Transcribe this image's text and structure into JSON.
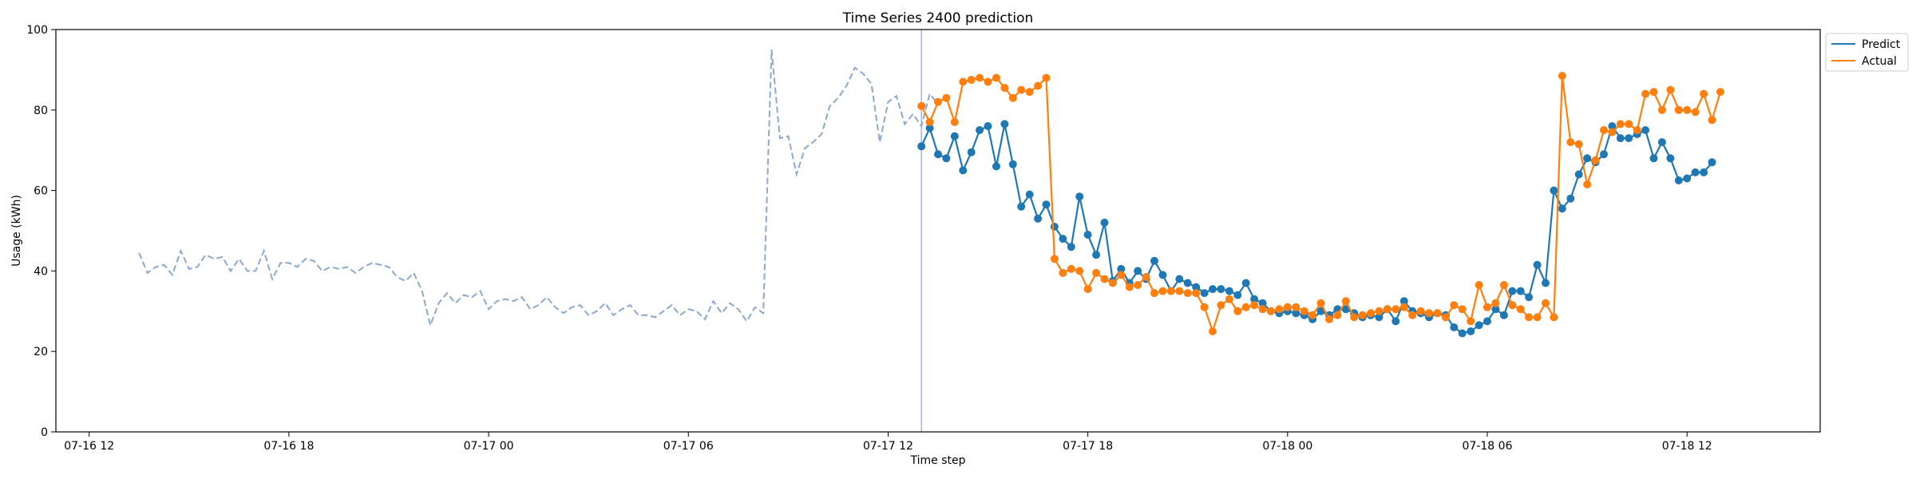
{
  "chart_data": {
    "type": "line",
    "title": "Time Series 2400 prediction",
    "xlabel": "Time step",
    "ylabel": "Usage (kWh)",
    "ylim": [
      0,
      100
    ],
    "yticks": [
      0,
      20,
      40,
      60,
      80,
      100
    ],
    "xlim": [
      "2024-07-16 11:00",
      "2024-07-18 16:00"
    ],
    "xticks": [
      {
        "t": "2024-07-16 12:00",
        "label": "07-16 12"
      },
      {
        "t": "2024-07-16 18:00",
        "label": "07-16 18"
      },
      {
        "t": "2024-07-17 00:00",
        "label": "07-17 00"
      },
      {
        "t": "2024-07-17 06:00",
        "label": "07-17 06"
      },
      {
        "t": "2024-07-17 12:00",
        "label": "07-17 12"
      },
      {
        "t": "2024-07-17 18:00",
        "label": "07-17 18"
      },
      {
        "t": "2024-07-18 00:00",
        "label": "07-18 00"
      },
      {
        "t": "2024-07-18 06:00",
        "label": "07-18 06"
      },
      {
        "t": "2024-07-18 12:00",
        "label": "07-18 12"
      }
    ],
    "forecast_start": "2024-07-17 13:00",
    "legend": {
      "position": "top-right"
    },
    "grid": false,
    "history": {
      "start": "2024-07-16 13:30",
      "step_minutes": 15,
      "color": "#8aa9cc",
      "values": [
        44.5,
        39.5,
        41,
        41.5,
        39,
        45,
        40.5,
        41,
        44,
        43,
        43.5,
        40,
        43,
        40,
        40,
        45,
        38,
        42,
        42,
        41,
        43,
        42.5,
        40,
        41,
        40.5,
        41,
        39.5,
        41,
        42,
        41.5,
        41,
        38.5,
        37.5,
        39.5,
        35,
        26.5,
        32,
        34.5,
        32,
        34,
        33.5,
        35,
        30.5,
        32.5,
        33,
        32.5,
        33.5,
        30.5,
        31.5,
        33.5,
        31,
        29.5,
        31,
        31.5,
        29,
        30,
        32,
        29,
        30.5,
        31.5,
        29,
        29,
        28.5,
        30,
        31.5,
        29,
        30.5,
        30,
        28,
        32.5,
        29.5,
        32,
        30.5,
        27.5,
        31,
        29.5,
        95,
        73,
        73.5,
        64,
        70.5,
        72,
        74,
        81,
        83,
        86,
        90.5,
        89,
        86.5,
        72,
        82,
        83.5,
        76.5,
        79,
        76,
        84,
        81.5
      ]
    },
    "series": [
      {
        "name": "Predict",
        "color": "#1f77b4",
        "start": "2024-07-17 13:00",
        "step_minutes": 15,
        "values": [
          71,
          75.5,
          69,
          68,
          73.5,
          65,
          69.5,
          75,
          76,
          66,
          76.5,
          66.5,
          56,
          59,
          53,
          56.5,
          51,
          48,
          46,
          58.5,
          49,
          44,
          52,
          37.5,
          40.5,
          37,
          40,
          38,
          42.5,
          39,
          35,
          38,
          37,
          36,
          34.5,
          35.5,
          35.5,
          35,
          34,
          37,
          33,
          32,
          30,
          29.5,
          30,
          29.5,
          29,
          28,
          30,
          29,
          30.5,
          30.5,
          29.5,
          28.5,
          29,
          28.5,
          30.5,
          27.5,
          32.5,
          30,
          29.5,
          28.5,
          29.5,
          29,
          26,
          24.5,
          25,
          26.5,
          27.5,
          30.5,
          29,
          35,
          35,
          33.5,
          41.5,
          37,
          60,
          55.5,
          58,
          64,
          68,
          67,
          69,
          76,
          73,
          73,
          74,
          75,
          68,
          72,
          68,
          62.5,
          63,
          64.5,
          64.5,
          67
        ]
      },
      {
        "name": "Actual",
        "color": "#ff7f0e",
        "start": "2024-07-17 13:00",
        "step_minutes": 15,
        "values": [
          81,
          77,
          82,
          83,
          77,
          87,
          87.5,
          88,
          87,
          88,
          85.5,
          83,
          85,
          84.5,
          86,
          88,
          43,
          39.5,
          40.5,
          40,
          35.5,
          39.5,
          38,
          37,
          39,
          36,
          36.5,
          38.5,
          34.5,
          35,
          35,
          35,
          34.5,
          34.5,
          31,
          25,
          31.5,
          33,
          30,
          31,
          31.5,
          30.5,
          30,
          30.5,
          31,
          31,
          30,
          29,
          32,
          28,
          29,
          32.5,
          28.5,
          29,
          29.5,
          30,
          30.5,
          30.5,
          31,
          29,
          30,
          29.5,
          29.5,
          28.5,
          31.5,
          30.5,
          27.5,
          36.5,
          31,
          32,
          36.5,
          31.5,
          30.5,
          28.5,
          28.5,
          32,
          28.5,
          88.5,
          72,
          71.5,
          61.5,
          67.5,
          75,
          74.5,
          76.5,
          76.5,
          75,
          84,
          84.5,
          80,
          85,
          80,
          80,
          79.5,
          84,
          77.5,
          84.5
        ]
      }
    ]
  }
}
